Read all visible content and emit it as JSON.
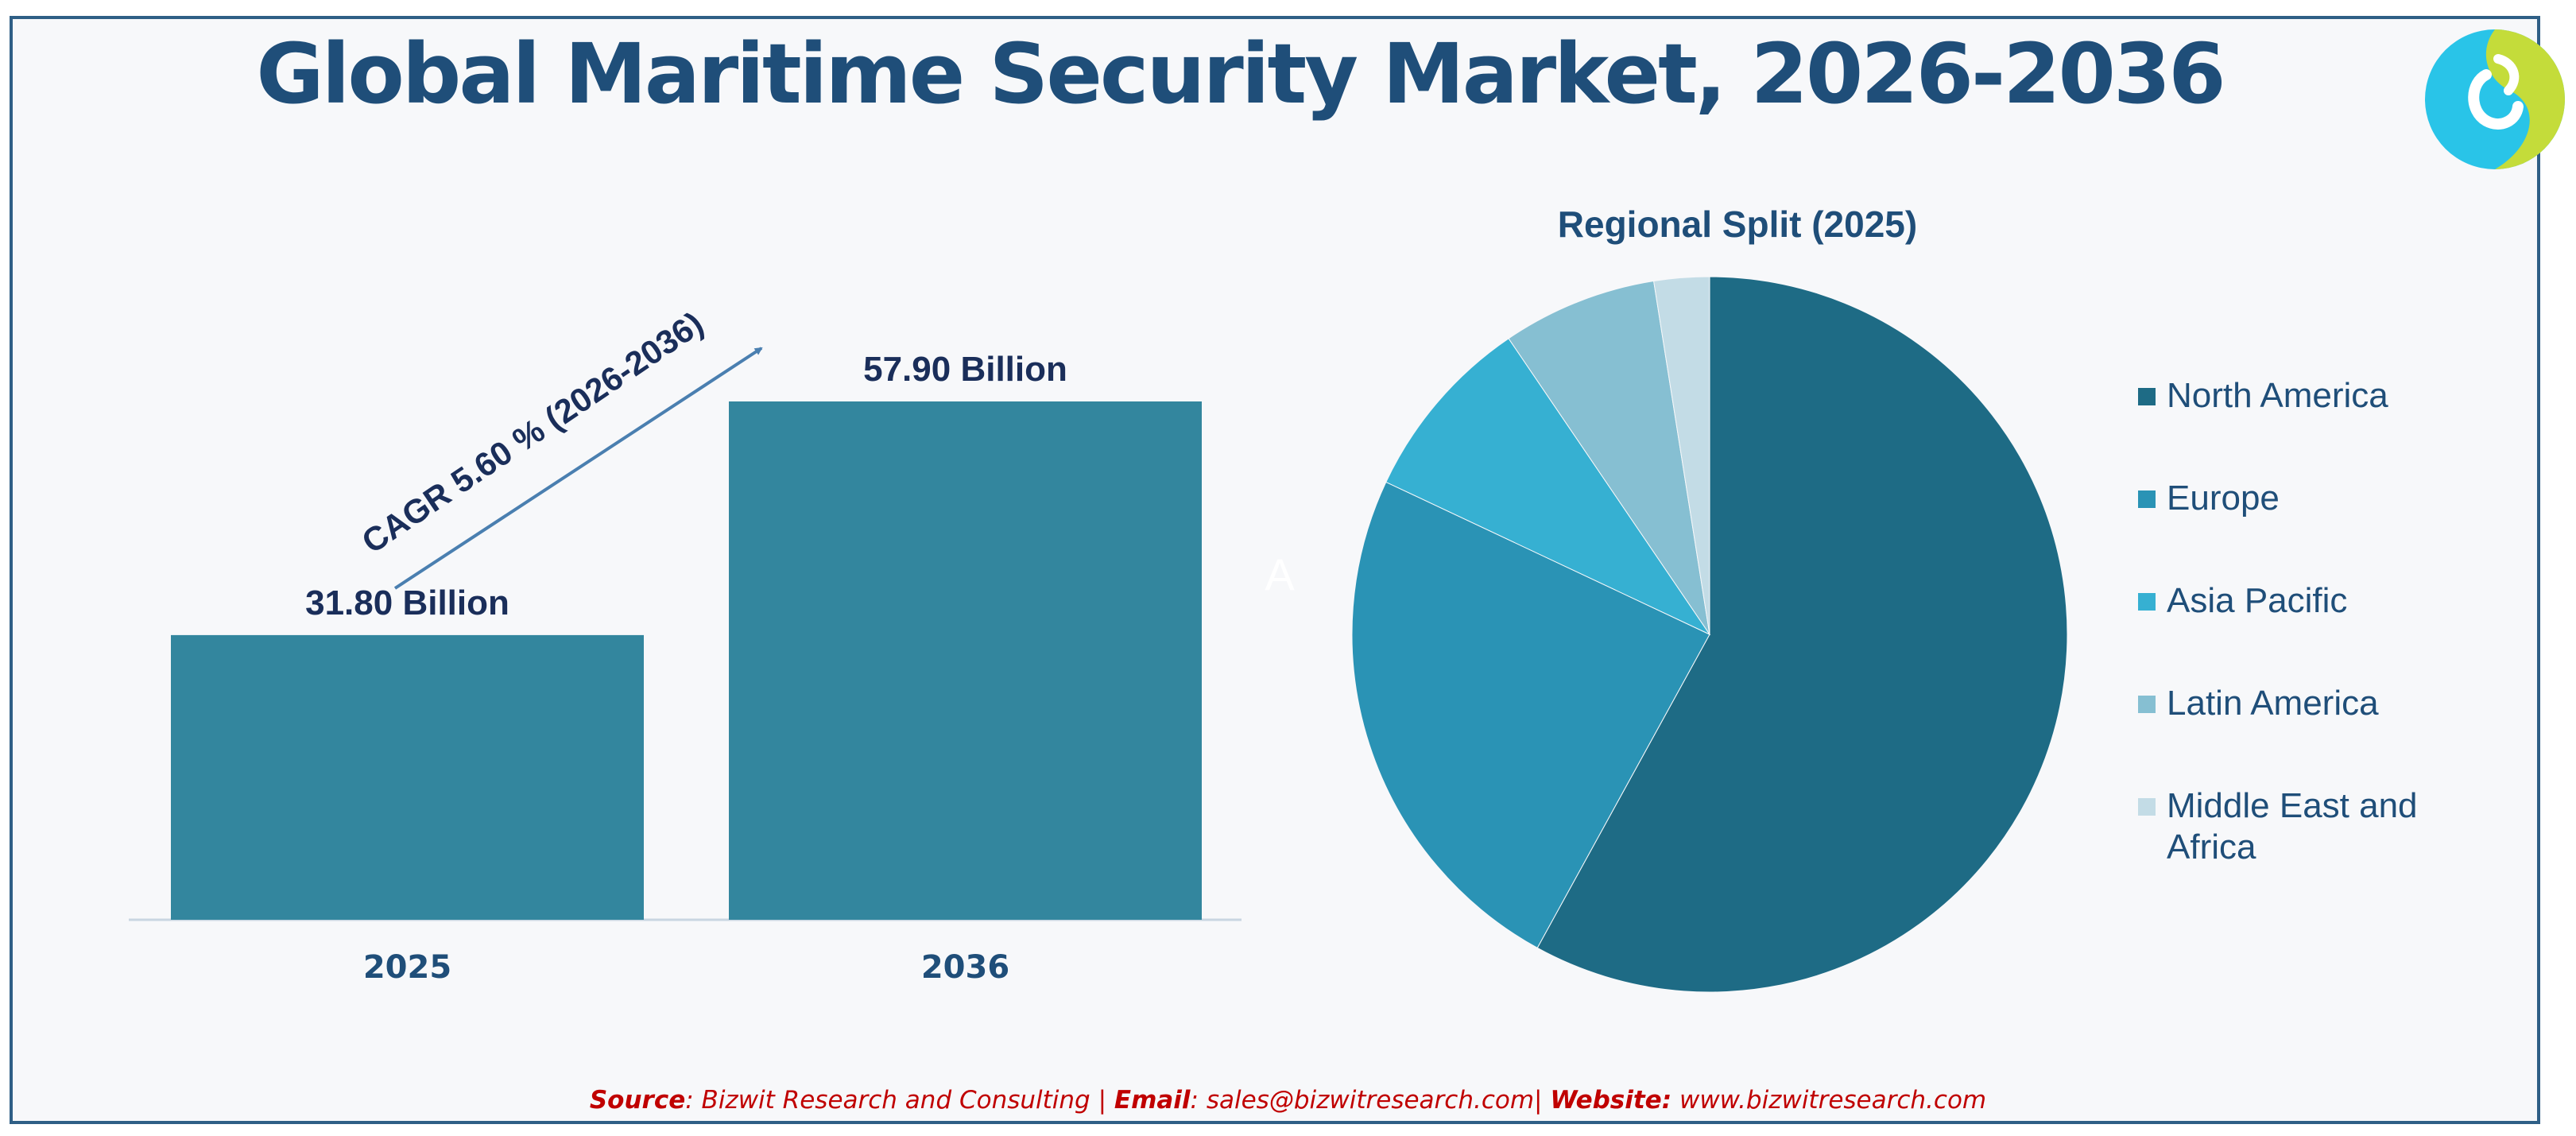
{
  "title": "Global Maritime Security Market, 2026-2036",
  "source": {
    "source_label": "Source",
    "source_text": ": Bizwit Research and Consulting | ",
    "email_label": "Email",
    "email_text": ": sales@bizwitresearch.com| ",
    "website_label": "Website:",
    "website_text": " www.bizwitresearch.com"
  },
  "stray_label": "A",
  "colors": {
    "title": "#1f4e79",
    "bar": "#33869e",
    "source": "#c00000",
    "logo_cyan": "#29c4e8",
    "logo_lime": "#c4dc3a"
  },
  "chart_data": [
    {
      "type": "bar",
      "categories": [
        "2025",
        "2036"
      ],
      "values": [
        31.8,
        57.9
      ],
      "data_labels": [
        "31.80 Billion",
        "57.90 Billion"
      ],
      "annotation": "CAGR 5.60 % (2026-2036)",
      "unit": "Billion",
      "ylim": [
        0,
        57.9
      ],
      "grid": false,
      "legend": "none"
    },
    {
      "type": "pie",
      "title": "Regional Split (2025)",
      "categories": [
        "North America",
        "Europe",
        "Asia Pacific",
        "Latin America",
        "Middle East and Africa"
      ],
      "values": [
        58,
        24,
        8.5,
        7,
        2.5
      ],
      "colors": [
        "#1e6b85",
        "#2a93b5",
        "#36b0d2",
        "#86bfd2",
        "#c3dce6"
      ],
      "legend": "right"
    }
  ]
}
